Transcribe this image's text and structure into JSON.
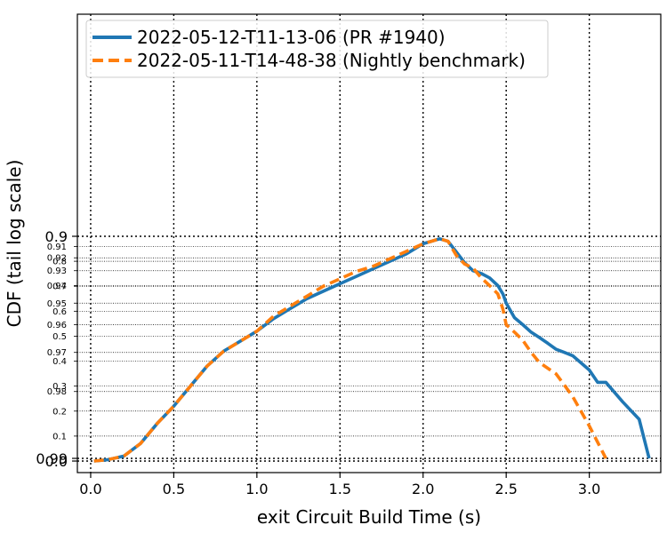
{
  "chart_data": {
    "type": "line",
    "xlabel": "exit Circuit Build Time (s)",
    "ylabel": "CDF (tail log scale)",
    "xlim": [
      -0.08,
      3.43
    ],
    "x_ticks": [
      0.0,
      0.5,
      1.0,
      1.5,
      2.0,
      2.5,
      3.0
    ],
    "x_tick_labels": [
      "0.0",
      "0.5",
      "1.0",
      "1.5",
      "2.0",
      "2.5",
      "3.0"
    ],
    "y_scale": "tail-log (linear below 0.9, log of tail above 0.9)",
    "y_major_ticks": [
      0.0,
      0.9,
      0.99
    ],
    "y_major_labels": [
      "0.0",
      "0.9",
      "0.99"
    ],
    "y_minor_ticks": [
      0.1,
      0.2,
      0.3,
      0.4,
      0.5,
      0.6,
      0.7,
      0.8,
      0.91,
      0.92,
      0.93,
      0.94,
      0.95,
      0.96,
      0.97,
      0.98
    ],
    "y_minor_labels": [
      "0.1",
      "0.2",
      "0.3",
      "0.4",
      "0.5",
      "0.6",
      "0.7",
      "0.8",
      "0.91",
      "0.92",
      "0.93",
      "0.94",
      "0.95",
      "0.96",
      "0.97",
      "0.98"
    ],
    "grid": true,
    "legend_position": "top-left",
    "series": [
      {
        "name": "2022-05-12-T11-13-06 (PR #1940)",
        "color": "#1f77b4",
        "style": "solid",
        "x": [
          0.02,
          0.1,
          0.2,
          0.3,
          0.4,
          0.5,
          0.6,
          0.7,
          0.8,
          0.9,
          1.0,
          1.1,
          1.2,
          1.3,
          1.4,
          1.5,
          1.6,
          1.7,
          1.8,
          1.9,
          1.95,
          2.0,
          2.05,
          2.1,
          2.15,
          2.2,
          2.25,
          2.3,
          2.35,
          2.4,
          2.45,
          2.48,
          2.5,
          2.55,
          2.6,
          2.65,
          2.7,
          2.75,
          2.8,
          2.85,
          2.9,
          3.0,
          3.05,
          3.1,
          3.2,
          3.3,
          3.36
        ],
        "y": [
          0.0,
          0.005,
          0.02,
          0.07,
          0.15,
          0.22,
          0.3,
          0.38,
          0.44,
          0.48,
          0.52,
          0.57,
          0.61,
          0.65,
          0.68,
          0.71,
          0.74,
          0.77,
          0.8,
          0.83,
          0.85,
          0.87,
          0.88,
          0.89,
          0.905,
          0.915,
          0.924,
          0.93,
          0.932,
          0.935,
          0.94,
          0.945,
          0.95,
          0.957,
          0.96,
          0.963,
          0.965,
          0.967,
          0.969,
          0.97,
          0.971,
          0.975,
          0.978,
          0.978,
          0.982,
          0.985,
          0.99
        ]
      },
      {
        "name": "2022-05-11-T14-48-38 (Nightly benchmark)",
        "color": "#ff7f0e",
        "style": "dashed",
        "x": [
          0.02,
          0.1,
          0.2,
          0.3,
          0.4,
          0.5,
          0.6,
          0.7,
          0.8,
          0.9,
          1.0,
          1.1,
          1.2,
          1.3,
          1.4,
          1.5,
          1.6,
          1.7,
          1.8,
          1.9,
          2.0,
          2.05,
          2.1,
          2.15,
          2.2,
          2.25,
          2.3,
          2.35,
          2.4,
          2.45,
          2.48,
          2.5,
          2.55,
          2.6,
          2.65,
          2.7,
          2.8,
          2.9,
          3.0,
          3.1
        ],
        "y": [
          0.0,
          0.005,
          0.02,
          0.07,
          0.15,
          0.22,
          0.3,
          0.38,
          0.44,
          0.48,
          0.52,
          0.58,
          0.62,
          0.66,
          0.7,
          0.73,
          0.76,
          0.78,
          0.81,
          0.84,
          0.87,
          0.88,
          0.89,
          0.905,
          0.918,
          0.925,
          0.928,
          0.935,
          0.94,
          0.945,
          0.953,
          0.96,
          0.963,
          0.966,
          0.97,
          0.973,
          0.976,
          0.981,
          0.986,
          0.99
        ]
      }
    ]
  }
}
